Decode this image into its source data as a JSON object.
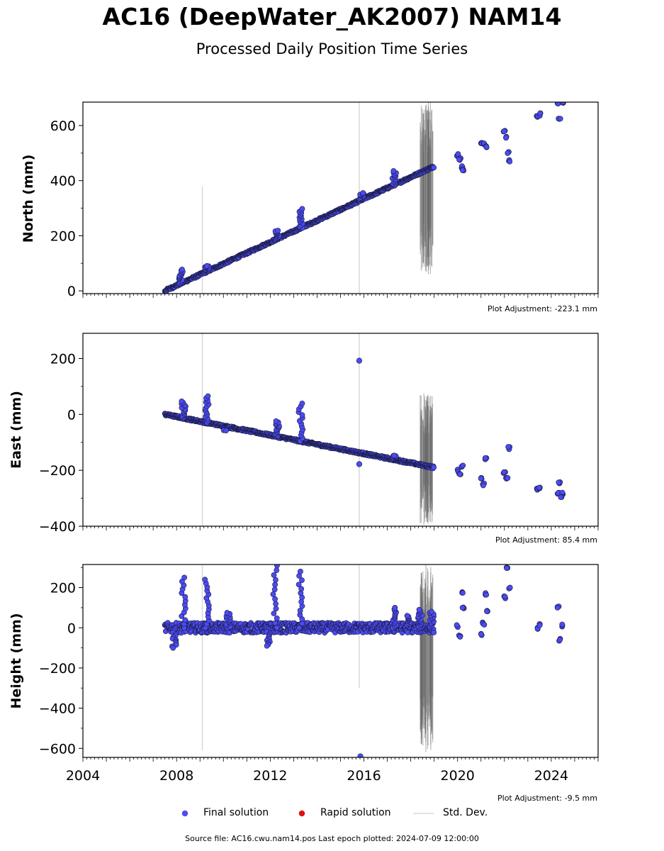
{
  "header": {
    "title": "AC16 (DeepWater_AK2007) NAM14",
    "subtitle": "Processed Daily Position Time Series"
  },
  "legend": {
    "final": "Final solution",
    "rapid": "Rapid solution",
    "std": "Std. Dev."
  },
  "footer": {
    "source": "Source file: AC16.cwu.nam14.pos  Last epoch plotted: 2024-07-09 12:00:00"
  },
  "colors": {
    "final": "#4b4bf5",
    "final_edge": "#1a1a3a",
    "rapid": "#e01010",
    "std": "#d8d8d8",
    "std_dense": "#6a6a6a"
  },
  "chart_data": [
    {
      "type": "scatter",
      "ylabel": "North (mm)",
      "adjustment": "Plot Adjustment: -223.1 mm",
      "xlim": [
        2004,
        2026
      ],
      "ylim": [
        -10,
        685
      ],
      "yticks": [
        0,
        200,
        400,
        600
      ],
      "xticks": [
        2004,
        2008,
        2012,
        2016,
        2020,
        2024
      ],
      "trend": [
        {
          "x": 2007.5,
          "y": 0
        },
        {
          "x": 2019.0,
          "y": 452
        }
      ],
      "cluster_gaps": [
        [
          2019.0,
          2019.9
        ],
        [
          2020.3,
          2020.9
        ],
        [
          2021.3,
          2021.9
        ],
        [
          2022.3,
          2023.2
        ],
        [
          2023.4,
          2024.2
        ]
      ],
      "later_points": [
        {
          "x": 2020.0,
          "y": 495
        },
        {
          "x": 2020.1,
          "y": 480
        },
        {
          "x": 2020.2,
          "y": 450
        },
        {
          "x": 2020.25,
          "y": 440
        },
        {
          "x": 2021.0,
          "y": 540
        },
        {
          "x": 2021.15,
          "y": 530
        },
        {
          "x": 2021.2,
          "y": 520
        },
        {
          "x": 2022.0,
          "y": 578
        },
        {
          "x": 2022.1,
          "y": 555
        },
        {
          "x": 2022.15,
          "y": 500
        },
        {
          "x": 2022.2,
          "y": 470
        },
        {
          "x": 2023.4,
          "y": 636
        },
        {
          "x": 2023.5,
          "y": 640
        },
        {
          "x": 2024.3,
          "y": 680
        },
        {
          "x": 2024.35,
          "y": 628
        },
        {
          "x": 2024.5,
          "y": 682
        }
      ],
      "excursions": [
        {
          "x": 2008.2,
          "dy": 50
        },
        {
          "x": 2009.3,
          "dy": 20
        },
        {
          "x": 2012.3,
          "dy": 30
        },
        {
          "x": 2013.3,
          "dy": 70
        },
        {
          "x": 2015.9,
          "dy": 25
        },
        {
          "x": 2017.3,
          "dy": 50
        }
      ],
      "std_lines": [
        {
          "x": 2009.1,
          "y1": -10,
          "y2": 380
        },
        {
          "x": 2015.8,
          "y1": -10,
          "y2": 685
        }
      ],
      "std_band": {
        "x1": 2018.4,
        "x2": 2018.95,
        "y1": 60,
        "y2": 685
      }
    },
    {
      "type": "scatter",
      "ylabel": "East (mm)",
      "adjustment": "Plot Adjustment: 85.4 mm",
      "xlim": [
        2004,
        2026
      ],
      "ylim": [
        -400,
        290
      ],
      "yticks": [
        -400,
        -200,
        0,
        200
      ],
      "xticks": [
        2004,
        2008,
        2012,
        2016,
        2020,
        2024
      ],
      "trend": [
        {
          "x": 2007.5,
          "y": 0
        },
        {
          "x": 2019.0,
          "y": -190
        }
      ],
      "later_points": [
        {
          "x": 2020.0,
          "y": -200
        },
        {
          "x": 2020.1,
          "y": -215
        },
        {
          "x": 2020.2,
          "y": -185
        },
        {
          "x": 2021.0,
          "y": -230
        },
        {
          "x": 2021.1,
          "y": -250
        },
        {
          "x": 2021.2,
          "y": -160
        },
        {
          "x": 2022.0,
          "y": -210
        },
        {
          "x": 2022.1,
          "y": -230
        },
        {
          "x": 2022.2,
          "y": -120
        },
        {
          "x": 2023.4,
          "y": -265
        },
        {
          "x": 2023.5,
          "y": -262
        },
        {
          "x": 2024.3,
          "y": -280
        },
        {
          "x": 2024.35,
          "y": -245
        },
        {
          "x": 2024.5,
          "y": -283
        },
        {
          "x": 2024.4,
          "y": -293
        }
      ],
      "outliers": [
        {
          "x": 2015.8,
          "y": 192
        },
        {
          "x": 2015.8,
          "y": -178
        }
      ],
      "excursions": [
        {
          "x": 2008.3,
          "dy": 60
        },
        {
          "x": 2009.3,
          "dy": 95
        },
        {
          "x": 2010.1,
          "dy": -15
        },
        {
          "x": 2012.3,
          "dy": 55
        },
        {
          "x": 2013.3,
          "dy": 135
        },
        {
          "x": 2017.3,
          "dy": 15
        }
      ],
      "std_lines": [
        {
          "x": 2009.1,
          "y1": -400,
          "y2": 290
        },
        {
          "x": 2015.8,
          "y1": -400,
          "y2": 290
        }
      ],
      "std_band": {
        "x1": 2018.4,
        "x2": 2018.95,
        "y1": -400,
        "y2": 80
      }
    },
    {
      "type": "scatter",
      "ylabel": "Height (mm)",
      "adjustment": "Plot Adjustment: -9.5 mm",
      "xlim": [
        2004,
        2026
      ],
      "ylim": [
        -645,
        315
      ],
      "yticks": [
        -600,
        -400,
        -200,
        0,
        200
      ],
      "xticks": [
        2004,
        2008,
        2012,
        2016,
        2020,
        2024
      ],
      "trend": [
        {
          "x": 2007.5,
          "y": 0
        },
        {
          "x": 2019.0,
          "y": 0
        }
      ],
      "later_points": [
        {
          "x": 2020.0,
          "y": 10
        },
        {
          "x": 2020.1,
          "y": -40
        },
        {
          "x": 2020.2,
          "y": 180
        },
        {
          "x": 2020.25,
          "y": 100
        },
        {
          "x": 2021.0,
          "y": -30
        },
        {
          "x": 2021.1,
          "y": 20
        },
        {
          "x": 2021.2,
          "y": 170
        },
        {
          "x": 2021.25,
          "y": 80
        },
        {
          "x": 2022.0,
          "y": 150
        },
        {
          "x": 2022.1,
          "y": 300
        },
        {
          "x": 2022.2,
          "y": 200
        },
        {
          "x": 2023.4,
          "y": 0
        },
        {
          "x": 2023.5,
          "y": 15
        },
        {
          "x": 2024.3,
          "y": 105
        },
        {
          "x": 2024.35,
          "y": -60
        },
        {
          "x": 2024.5,
          "y": 10
        }
      ],
      "outliers": [
        {
          "x": 2015.85,
          "y": -640
        }
      ],
      "excursions": [
        {
          "x": 2007.9,
          "dy": -100
        },
        {
          "x": 2008.3,
          "dy": 250
        },
        {
          "x": 2009.3,
          "dy": 240
        },
        {
          "x": 2010.2,
          "dy": 75
        },
        {
          "x": 2011.9,
          "dy": -90
        },
        {
          "x": 2012.2,
          "dy": 310
        },
        {
          "x": 2013.3,
          "dy": 280
        },
        {
          "x": 2017.3,
          "dy": 100
        },
        {
          "x": 2017.9,
          "dy": 60
        },
        {
          "x": 2018.4,
          "dy": 90
        },
        {
          "x": 2018.9,
          "dy": 80
        }
      ],
      "std_lines": [
        {
          "x": 2009.1,
          "y1": -610,
          "y2": 315
        },
        {
          "x": 2015.8,
          "y1": -300,
          "y2": 315
        }
      ],
      "std_band": {
        "x1": 2018.4,
        "x2": 2018.95,
        "y1": -620,
        "y2": 315
      }
    }
  ]
}
